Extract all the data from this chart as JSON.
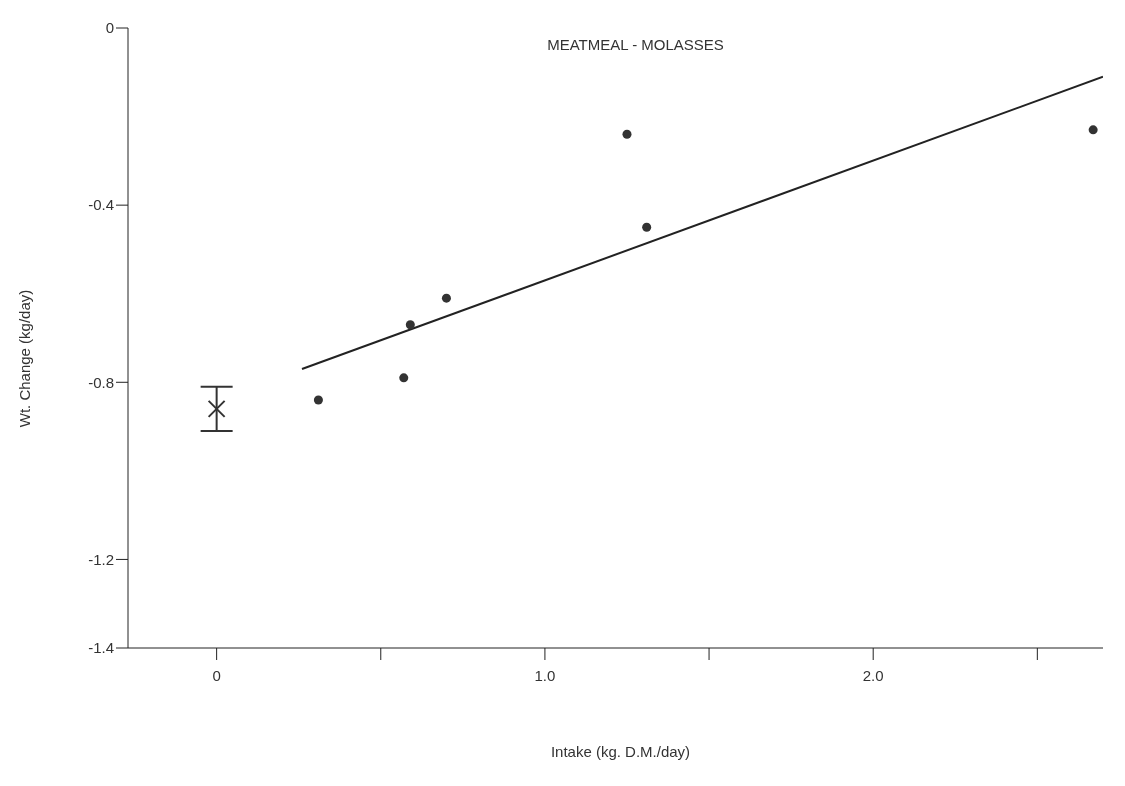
{
  "chart_data": {
    "type": "scatter",
    "title": "MEATMEAL - MOLASSES",
    "xlabel": "Intake (kg. D.M./day)",
    "ylabel": "Wt. Change (kg/day)",
    "xlim": [
      -0.27,
      2.7
    ],
    "xticks": [
      {
        "value": 0,
        "label": "0"
      },
      {
        "value": 0.5,
        "label": null
      },
      {
        "value": 1,
        "label": "1.0"
      },
      {
        "value": 1.5,
        "label": null
      },
      {
        "value": 2,
        "label": "2.0"
      },
      {
        "value": 2.5,
        "label": null
      }
    ],
    "ylim": [
      -1.4,
      0
    ],
    "yticks": [
      0,
      -0.4,
      -0.8,
      -1.2,
      -1.4
    ],
    "grid": false,
    "series": [
      {
        "marker": "circle",
        "color": "#333333",
        "x": [
          0.31,
          0.57,
          0.59,
          0.7,
          1.25,
          1.31,
          2.67
        ],
        "values": [
          -0.84,
          -0.79,
          -0.67,
          -0.61,
          -0.24,
          -0.45,
          -0.23
        ]
      },
      {
        "marker": "cross",
        "color": "#333333",
        "x": [
          0
        ],
        "values": [
          -0.86
        ],
        "errors": [
          [
            -0.91,
            -0.81
          ]
        ]
      },
      {
        "type": "line",
        "marker": "none",
        "color": "#222222",
        "x": [
          0.26,
          2.7
        ],
        "values": [
          -0.77,
          -0.11
        ]
      }
    ]
  }
}
